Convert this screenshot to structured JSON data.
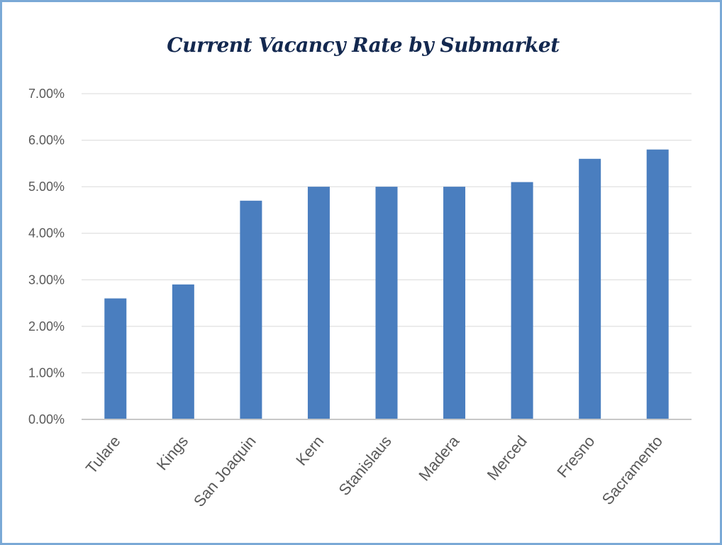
{
  "chart_data": {
    "type": "bar",
    "title": "Current Vacancy Rate by Submarket",
    "xlabel": "",
    "ylabel": "",
    "categories": [
      "Tulare",
      "Kings",
      "San Joaquin",
      "Kern",
      "Stanislaus",
      "Madera",
      "Merced",
      "Fresno",
      "Sacramento"
    ],
    "values": [
      0.026,
      0.029,
      0.047,
      0.05,
      0.05,
      0.05,
      0.051,
      0.056,
      0.058
    ],
    "ylim": [
      0,
      0.07
    ],
    "yticks": [
      0,
      0.01,
      0.02,
      0.03,
      0.04,
      0.05,
      0.06,
      0.07
    ],
    "ytick_labels": [
      "0.00%",
      "1.00%",
      "2.00%",
      "3.00%",
      "4.00%",
      "5.00%",
      "6.00%",
      "7.00%"
    ],
    "grid": true,
    "legend": "none",
    "bar_color": "#4a7ebf",
    "grid_color": "#d9d9d9",
    "frame_color": "#7aa9d6",
    "title_color": "#13284f"
  }
}
